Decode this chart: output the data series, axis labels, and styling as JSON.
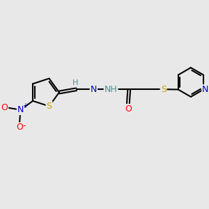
{
  "background_color": "#e8e8e8",
  "bond_color": "#000000",
  "atom_colors": {
    "S": "#c8a000",
    "N": "#0000cd",
    "O": "#ff0000",
    "H": "#4a9090",
    "C": "#000000"
  },
  "figsize": [
    3.0,
    3.0
  ],
  "dpi": 100
}
